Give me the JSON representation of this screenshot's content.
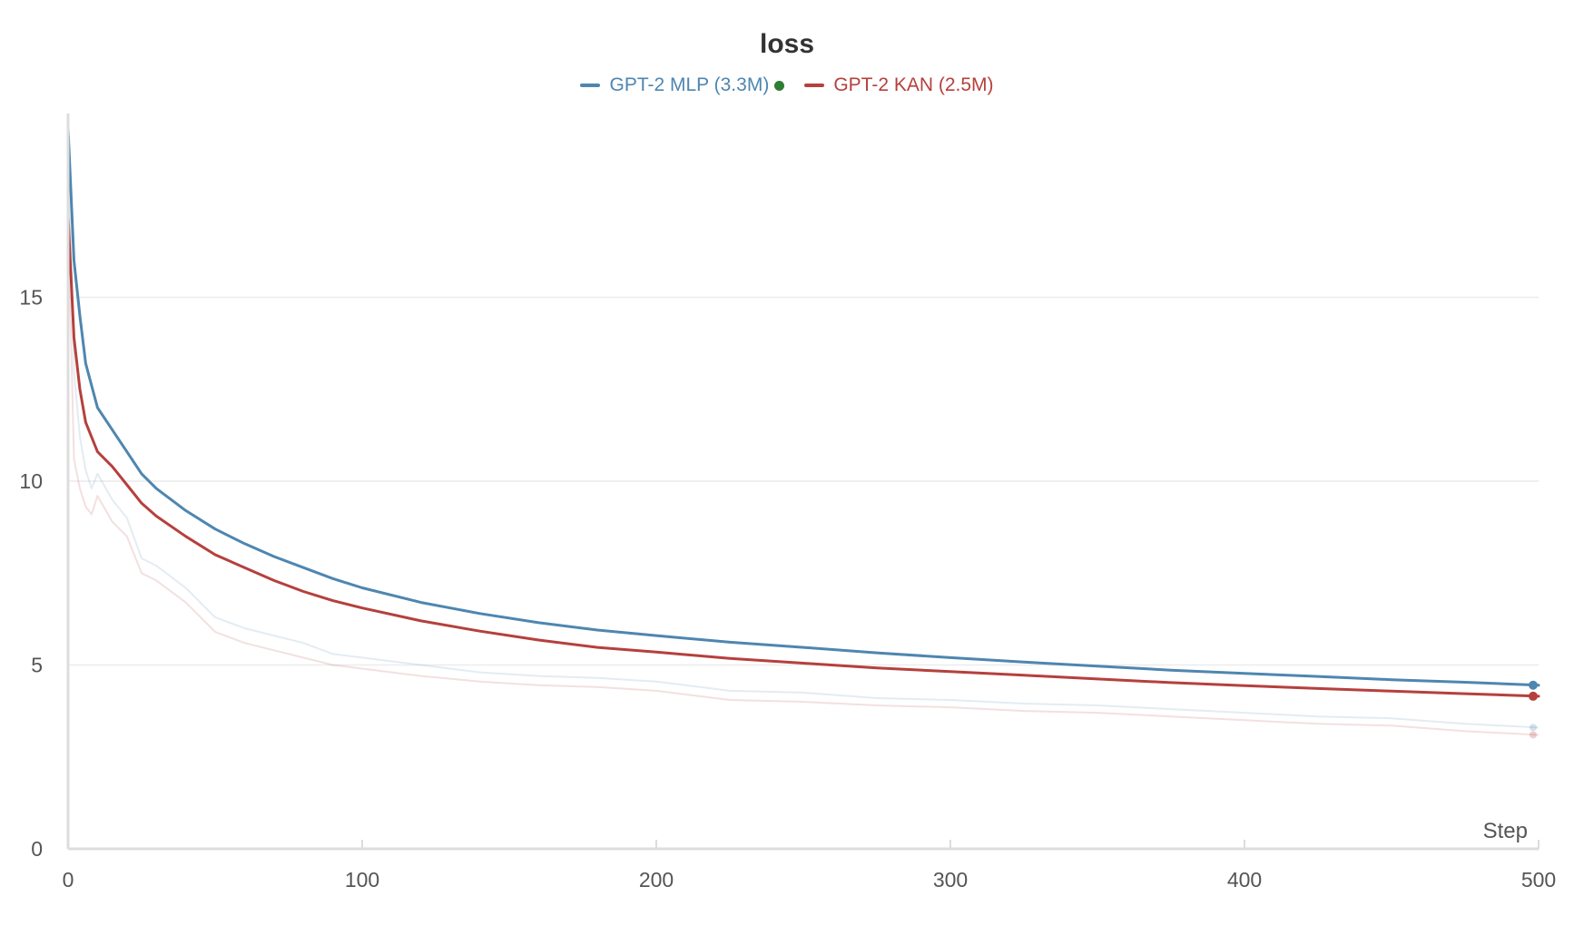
{
  "chart_data": {
    "type": "line",
    "title": "loss",
    "xlabel": "Step",
    "ylabel": "",
    "xlim": [
      0,
      500
    ],
    "ylim": [
      0,
      20
    ],
    "x_ticks": [
      0,
      100,
      200,
      300,
      400,
      500
    ],
    "y_ticks": [
      0,
      5,
      10,
      15
    ],
    "grid": "horizontal",
    "legend_position": "top-center",
    "series": [
      {
        "name": "GPT-2 MLP (3.3M)",
        "color": "#4e86b0",
        "smoothed": {
          "x": [
            0,
            2,
            4,
            6,
            8,
            10,
            15,
            20,
            25,
            30,
            40,
            50,
            60,
            70,
            80,
            90,
            100,
            120,
            140,
            160,
            180,
            200,
            225,
            250,
            275,
            300,
            325,
            350,
            375,
            400,
            425,
            450,
            475,
            500
          ],
          "y": [
            19.6,
            16.0,
            14.5,
            13.2,
            12.6,
            12.0,
            11.4,
            10.8,
            10.2,
            9.8,
            9.2,
            8.7,
            8.3,
            7.95,
            7.65,
            7.35,
            7.1,
            6.7,
            6.4,
            6.15,
            5.95,
            5.8,
            5.62,
            5.48,
            5.33,
            5.2,
            5.08,
            4.97,
            4.86,
            4.77,
            4.69,
            4.6,
            4.53,
            4.45
          ]
        },
        "raw": {
          "x": [
            0,
            2,
            4,
            6,
            8,
            10,
            15,
            20,
            25,
            30,
            40,
            50,
            60,
            70,
            80,
            90,
            100,
            120,
            140,
            160,
            180,
            200,
            225,
            250,
            275,
            300,
            325,
            350,
            375,
            400,
            425,
            450,
            475,
            500
          ],
          "y": [
            19.6,
            13.0,
            11.2,
            10.3,
            9.8,
            10.2,
            9.5,
            9.0,
            7.9,
            7.7,
            7.1,
            6.3,
            6.0,
            5.8,
            5.6,
            5.3,
            5.2,
            5.0,
            4.8,
            4.7,
            4.65,
            4.55,
            4.3,
            4.25,
            4.1,
            4.05,
            3.95,
            3.9,
            3.8,
            3.7,
            3.6,
            3.55,
            3.4,
            3.3
          ]
        }
      },
      {
        "name": "GPT-2 KAN (2.5M)",
        "color": "#b5403d",
        "smoothed": {
          "x": [
            0,
            2,
            4,
            6,
            8,
            10,
            15,
            20,
            25,
            30,
            40,
            50,
            60,
            70,
            80,
            90,
            100,
            120,
            140,
            160,
            180,
            200,
            225,
            250,
            275,
            300,
            325,
            350,
            375,
            400,
            425,
            450,
            475,
            500
          ],
          "y": [
            17.2,
            13.9,
            12.5,
            11.6,
            11.2,
            10.8,
            10.4,
            9.9,
            9.4,
            9.05,
            8.5,
            8.0,
            7.65,
            7.3,
            7.0,
            6.75,
            6.55,
            6.2,
            5.92,
            5.68,
            5.48,
            5.35,
            5.18,
            5.05,
            4.92,
            4.82,
            4.72,
            4.62,
            4.52,
            4.44,
            4.36,
            4.29,
            4.22,
            4.15
          ]
        },
        "raw": {
          "x": [
            0,
            2,
            4,
            6,
            8,
            10,
            15,
            20,
            25,
            30,
            40,
            50,
            60,
            70,
            80,
            90,
            100,
            120,
            140,
            160,
            180,
            200,
            225,
            250,
            275,
            300,
            325,
            350,
            375,
            400,
            425,
            450,
            475,
            500
          ],
          "y": [
            17.2,
            10.6,
            9.8,
            9.3,
            9.1,
            9.6,
            8.9,
            8.5,
            7.5,
            7.3,
            6.7,
            5.9,
            5.6,
            5.4,
            5.2,
            5.0,
            4.9,
            4.7,
            4.55,
            4.45,
            4.4,
            4.3,
            4.05,
            4.0,
            3.9,
            3.85,
            3.75,
            3.7,
            3.6,
            3.5,
            3.4,
            3.35,
            3.2,
            3.1
          ]
        }
      }
    ],
    "legend_marker_color": "#2e7d32"
  }
}
